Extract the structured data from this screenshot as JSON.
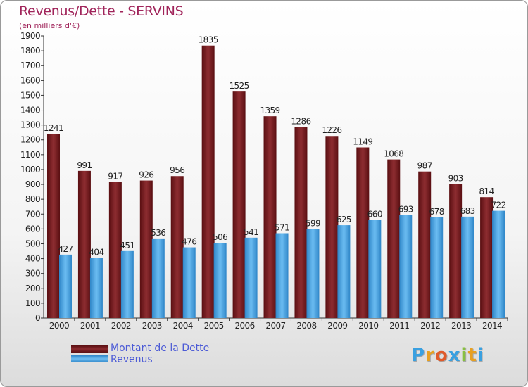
{
  "title": "Revenus/Dette - SERVINS",
  "subtitle": "(en milliers d'€)",
  "logo": [
    "P",
    "r",
    "o",
    "x",
    "i",
    "t",
    "i"
  ],
  "logo_colors": [
    "#3aa0e0",
    "#e8a020",
    "#e05a2a",
    "#3aa0e0",
    "#88c040",
    "#e8a020",
    "#3aa0e0"
  ],
  "chart_data": {
    "type": "bar",
    "categories": [
      "2000",
      "2001",
      "2002",
      "2003",
      "2004",
      "2005",
      "2006",
      "2007",
      "2008",
      "2009",
      "2010",
      "2011",
      "2012",
      "2013",
      "2014"
    ],
    "series": [
      {
        "name": "Montant de la Dette",
        "color": "#7a1a1e",
        "values": [
          1241,
          991,
          917,
          926,
          956,
          1835,
          1525,
          1359,
          1286,
          1226,
          1149,
          1068,
          987,
          903,
          814
        ]
      },
      {
        "name": "Revenus",
        "color": "#4aa3e3",
        "values": [
          427,
          404,
          451,
          536,
          476,
          506,
          541,
          571,
          599,
          625,
          660,
          693,
          678,
          683,
          722
        ]
      }
    ],
    "ylim": [
      0,
      1900
    ],
    "yticks": [
      0,
      100,
      200,
      300,
      400,
      500,
      600,
      700,
      800,
      900,
      1000,
      1100,
      1200,
      1300,
      1400,
      1500,
      1600,
      1700,
      1800,
      1900
    ],
    "grid": false,
    "legend": "bottom-left"
  }
}
